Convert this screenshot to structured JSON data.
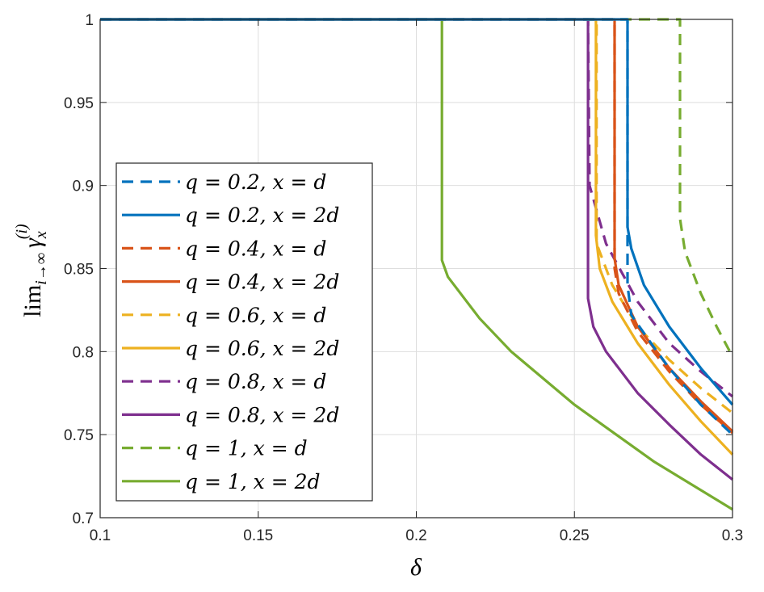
{
  "chart_data": {
    "type": "line",
    "title": "",
    "xlabel": "δ",
    "ylabel": {
      "lim": "lim",
      "sub": "i→∞",
      "gamma": "γ",
      "gamma_sub": "x",
      "gamma_sup": "(i)"
    },
    "xlim": [
      0.1,
      0.3
    ],
    "ylim": [
      0.7,
      1
    ],
    "xticks": [
      0.1,
      0.15,
      0.2,
      0.25,
      0.3
    ],
    "xtick_labels": [
      "0.1",
      "0.15",
      "0.2",
      "0.25",
      "0.3"
    ],
    "yticks": [
      0.7,
      0.75,
      0.8,
      0.85,
      0.9,
      0.95,
      1
    ],
    "ytick_labels": [
      "0.7",
      "0.75",
      "0.8",
      "0.85",
      "0.9",
      "0.95",
      "1"
    ],
    "grid": true,
    "legend_placement": "left",
    "series": [
      {
        "name": "q = 0.2, x = d",
        "color": "#0072BD",
        "dash": true,
        "points": [
          [
            0.1,
            1
          ],
          [
            0.2668,
            1
          ],
          [
            0.2668,
            0.84
          ],
          [
            0.268,
            0.822
          ],
          [
            0.275,
            0.803
          ],
          [
            0.28,
            0.79
          ],
          [
            0.29,
            0.768
          ],
          [
            0.3,
            0.75
          ]
        ]
      },
      {
        "name": "q = 0.2, x = 2d",
        "color": "#0072BD",
        "dash": false,
        "points": [
          [
            0.1,
            1
          ],
          [
            0.2668,
            1
          ],
          [
            0.2668,
            0.875
          ],
          [
            0.268,
            0.862
          ],
          [
            0.272,
            0.84
          ],
          [
            0.28,
            0.815
          ],
          [
            0.29,
            0.79
          ],
          [
            0.3,
            0.768
          ]
        ]
      },
      {
        "name": "q = 0.4, x = d",
        "color": "#D95319",
        "dash": true,
        "points": [
          [
            0.1,
            1
          ],
          [
            0.2627,
            1
          ],
          [
            0.2627,
            0.85
          ],
          [
            0.264,
            0.835
          ],
          [
            0.27,
            0.812
          ],
          [
            0.28,
            0.788
          ],
          [
            0.29,
            0.768
          ],
          [
            0.3,
            0.751
          ]
        ]
      },
      {
        "name": "q = 0.4, x = 2d",
        "color": "#D95319",
        "dash": false,
        "points": [
          [
            0.1,
            1
          ],
          [
            0.2627,
            1
          ],
          [
            0.2627,
            0.856
          ],
          [
            0.264,
            0.84
          ],
          [
            0.27,
            0.815
          ],
          [
            0.28,
            0.79
          ],
          [
            0.29,
            0.77
          ],
          [
            0.3,
            0.752
          ]
        ]
      },
      {
        "name": "q = 0.6, x = d",
        "color": "#EDB120",
        "dash": true,
        "points": [
          [
            0.1,
            1
          ],
          [
            0.257,
            1
          ],
          [
            0.257,
            0.865
          ],
          [
            0.262,
            0.84
          ],
          [
            0.27,
            0.815
          ],
          [
            0.28,
            0.795
          ],
          [
            0.29,
            0.778
          ],
          [
            0.3,
            0.763
          ]
        ]
      },
      {
        "name": "q = 0.6, x = 2d",
        "color": "#EDB120",
        "dash": false,
        "points": [
          [
            0.1,
            1
          ],
          [
            0.2568,
            1
          ],
          [
            0.2568,
            0.87
          ],
          [
            0.258,
            0.85
          ],
          [
            0.262,
            0.83
          ],
          [
            0.27,
            0.805
          ],
          [
            0.28,
            0.78
          ],
          [
            0.29,
            0.758
          ],
          [
            0.3,
            0.738
          ]
        ]
      },
      {
        "name": "q = 0.8, x = d",
        "color": "#7E2F8E",
        "dash": true,
        "points": [
          [
            0.1,
            1
          ],
          [
            0.2543,
            1
          ],
          [
            0.2548,
            0.9
          ],
          [
            0.26,
            0.865
          ],
          [
            0.27,
            0.83
          ],
          [
            0.28,
            0.805
          ],
          [
            0.29,
            0.788
          ],
          [
            0.3,
            0.773
          ]
        ]
      },
      {
        "name": "q = 0.8, x = 2d",
        "color": "#7E2F8E",
        "dash": false,
        "points": [
          [
            0.1,
            1
          ],
          [
            0.2543,
            1
          ],
          [
            0.2543,
            0.832
          ],
          [
            0.256,
            0.815
          ],
          [
            0.26,
            0.8
          ],
          [
            0.27,
            0.775
          ],
          [
            0.28,
            0.756
          ],
          [
            0.29,
            0.738
          ],
          [
            0.3,
            0.723
          ]
        ]
      },
      {
        "name": "q = 1, x = d",
        "color": "#77AC30",
        "dash": true,
        "points": [
          [
            0.1,
            1
          ],
          [
            0.2834,
            1
          ],
          [
            0.2834,
            0.88
          ],
          [
            0.285,
            0.86
          ],
          [
            0.29,
            0.835
          ],
          [
            0.295,
            0.815
          ],
          [
            0.3,
            0.797
          ]
        ]
      },
      {
        "name": "q = 1, x = 2d",
        "color": "#77AC30",
        "dash": false,
        "points": [
          [
            0.1,
            1
          ],
          [
            0.2081,
            1
          ],
          [
            0.2081,
            0.855
          ],
          [
            0.21,
            0.845
          ],
          [
            0.22,
            0.82
          ],
          [
            0.23,
            0.8
          ],
          [
            0.25,
            0.768
          ],
          [
            0.275,
            0.734
          ],
          [
            0.3,
            0.705
          ]
        ]
      }
    ]
  }
}
